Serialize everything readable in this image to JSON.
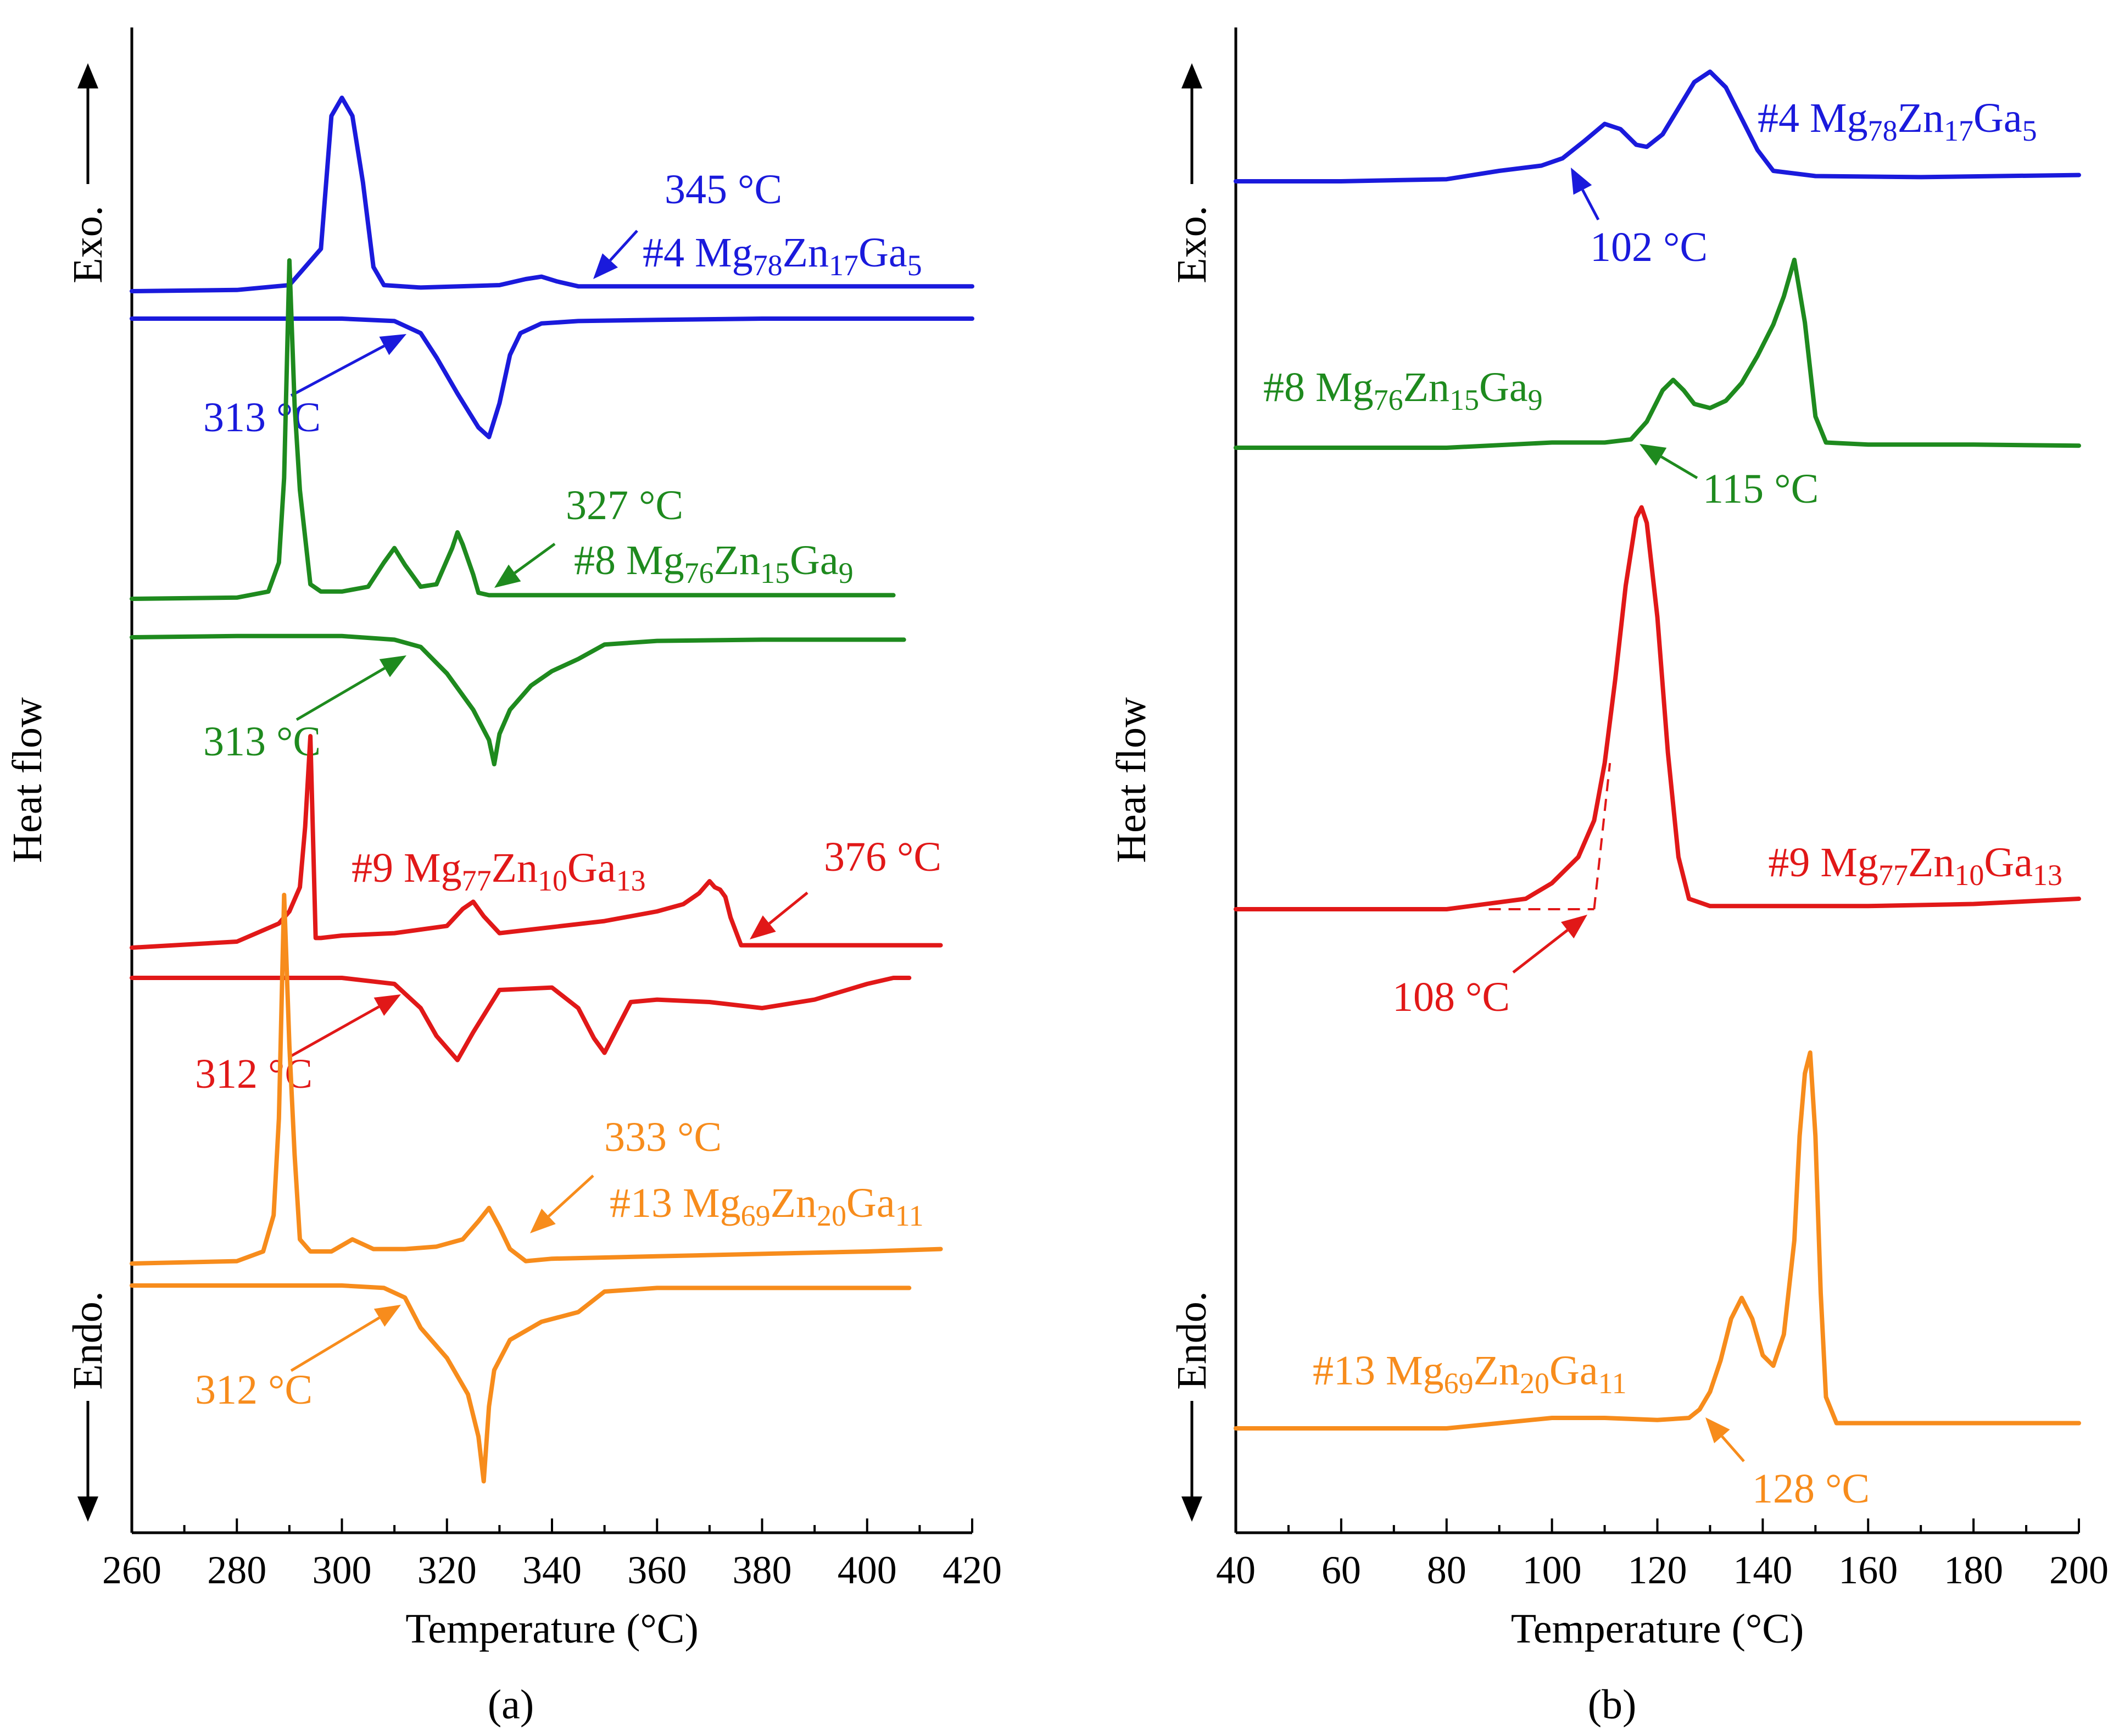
{
  "panel_labels": {
    "a": "(a)",
    "b": "(b)"
  },
  "chart_data": [
    {
      "type": "line",
      "xlabel": "Temperature (°C)",
      "ylabel": "Heat flow",
      "exo_label": "Exo.",
      "endo_label": "Endo.",
      "xlim": [
        260,
        420
      ],
      "xticks": [
        260,
        280,
        300,
        320,
        340,
        360,
        380,
        400,
        420
      ],
      "series": [
        {
          "label": "#4 Mg78Zn17Ga5",
          "color": "#1a1adc",
          "sample": "#4 Mg",
          "sub1": "78",
          "el2": "Zn",
          "sub2": "17",
          "el3": "Ga",
          "sub3": "5",
          "heating_onset": "345 °C",
          "cooling_onset": "313 °C",
          "heating_x": [
            260,
            280,
            290,
            296,
            298,
            300,
            302,
            304,
            306,
            308,
            315,
            330,
            335,
            338,
            341,
            345,
            360,
            380,
            400,
            420
          ],
          "heating_y": [
            0,
            0.01,
            0.05,
            0.35,
            1.45,
            1.6,
            1.45,
            0.9,
            0.2,
            0.05,
            0.03,
            0.05,
            0.1,
            0.12,
            0.08,
            0.04,
            0.04,
            0.04,
            0.04,
            0.04
          ],
          "cooling_x": [
            260,
            280,
            300,
            310,
            315,
            318,
            322,
            326,
            328,
            330,
            332,
            334,
            338,
            345,
            360,
            380,
            400,
            420
          ],
          "cooling_y": [
            0,
            0,
            0,
            -0.02,
            -0.12,
            -0.32,
            -0.62,
            -0.9,
            -0.98,
            -0.7,
            -0.3,
            -0.12,
            -0.04,
            -0.02,
            -0.01,
            0,
            0,
            0
          ]
        },
        {
          "label": "#8 Mg76Zn15Ga9",
          "color": "#1e8a1e",
          "sample": "#8 Mg",
          "sub1": "76",
          "el2": "Zn",
          "sub2": "15",
          "el3": "Ga",
          "sub3": "9",
          "heating_onset": "327 °C",
          "cooling_onset": "313 °C",
          "heating_x": [
            260,
            280,
            286,
            288,
            289,
            290,
            291,
            292,
            294,
            296,
            300,
            305,
            308,
            310,
            312,
            315,
            318,
            321,
            322,
            323,
            325,
            326,
            328,
            340,
            360,
            380,
            400,
            405
          ],
          "heating_y": [
            0,
            0.01,
            0.06,
            0.3,
            1.0,
            2.8,
            1.6,
            0.9,
            0.12,
            0.06,
            0.06,
            0.1,
            0.3,
            0.42,
            0.28,
            0.1,
            0.12,
            0.42,
            0.55,
            0.45,
            0.2,
            0.05,
            0.03,
            0.03,
            0.03,
            0.03,
            0.03,
            0.03
          ],
          "cooling_x": [
            260,
            280,
            300,
            310,
            315,
            320,
            325,
            328,
            329,
            330,
            332,
            336,
            340,
            345,
            350,
            360,
            380,
            400,
            407
          ],
          "cooling_y": [
            0,
            0.01,
            0.01,
            -0.02,
            -0.08,
            -0.3,
            -0.6,
            -0.85,
            -1.05,
            -0.8,
            -0.6,
            -0.4,
            -0.28,
            -0.18,
            -0.06,
            -0.03,
            -0.02,
            -0.02,
            -0.02
          ]
        },
        {
          "label": "#9 Mg77Zn10Ga13",
          "color": "#e11818",
          "sample": "#9 Mg",
          "sub1": "77",
          "el2": "Zn",
          "sub2": "10",
          "el3": "Ga",
          "sub3": "13",
          "heating_onset": "376 °C",
          "cooling_onset": "312 °C",
          "heating_x": [
            260,
            280,
            288,
            290,
            292,
            293,
            294,
            295,
            296,
            300,
            310,
            320,
            323,
            325,
            327,
            330,
            340,
            350,
            360,
            365,
            368,
            370,
            371,
            372,
            373,
            374,
            376,
            380,
            400,
            414
          ],
          "heating_y": [
            0,
            0.05,
            0.2,
            0.3,
            0.5,
            1.0,
            1.75,
            0.08,
            0.08,
            0.1,
            0.12,
            0.18,
            0.32,
            0.38,
            0.26,
            0.12,
            0.17,
            0.22,
            0.3,
            0.36,
            0.45,
            0.55,
            0.5,
            0.48,
            0.42,
            0.25,
            0.02,
            0.02,
            0.02,
            0.02
          ],
          "cooling_x": [
            260,
            280,
            300,
            310,
            315,
            318,
            322,
            325,
            330,
            340,
            345,
            348,
            350,
            352,
            355,
            360,
            370,
            380,
            390,
            400,
            405,
            408
          ],
          "cooling_y": [
            0,
            0,
            0,
            -0.05,
            -0.25,
            -0.48,
            -0.68,
            -0.45,
            -0.1,
            -0.08,
            -0.25,
            -0.5,
            -0.62,
            -0.45,
            -0.2,
            -0.18,
            -0.2,
            -0.25,
            -0.18,
            -0.05,
            0,
            0
          ]
        },
        {
          "label": "#13 Mg69Zn20Ga11",
          "color": "#f78c1c",
          "sample": "#13 Mg",
          "sub1": "69",
          "el2": "Zn",
          "sub2": "20",
          "el3": "Ga",
          "sub3": "11",
          "heating_onset": "333 °C",
          "cooling_onset": "312 °C",
          "heating_x": [
            260,
            280,
            285,
            287,
            288,
            289,
            290,
            291,
            292,
            294,
            298,
            302,
            306,
            312,
            318,
            323,
            326,
            328,
            330,
            332,
            335,
            340,
            360,
            380,
            400,
            414
          ],
          "heating_y": [
            0,
            0.02,
            0.1,
            0.4,
            1.2,
            3.05,
            1.8,
            0.9,
            0.2,
            0.1,
            0.1,
            0.2,
            0.12,
            0.12,
            0.14,
            0.2,
            0.35,
            0.46,
            0.3,
            0.12,
            0.02,
            0.04,
            0.06,
            0.08,
            0.1,
            0.12
          ],
          "cooling_x": [
            260,
            280,
            300,
            308,
            312,
            315,
            320,
            324,
            326,
            327,
            328,
            329,
            332,
            338,
            345,
            350,
            360,
            380,
            400,
            408
          ],
          "cooling_y": [
            0,
            0,
            0,
            -0.02,
            -0.1,
            -0.35,
            -0.6,
            -0.9,
            -1.25,
            -1.62,
            -1.0,
            -0.7,
            -0.45,
            -0.3,
            -0.22,
            -0.05,
            -0.02,
            -0.02,
            -0.02,
            -0.02
          ]
        }
      ]
    },
    {
      "type": "line",
      "xlabel": "Temperature (°C)",
      "ylabel": "Heat flow",
      "exo_label": "Exo.",
      "endo_label": "Endo.",
      "xlim": [
        40,
        200
      ],
      "xticks": [
        40,
        60,
        80,
        100,
        120,
        140,
        160,
        180,
        200
      ],
      "series": [
        {
          "label": "#4 Mg78Zn17Ga5",
          "color": "#1a1adc",
          "sample": "#4 Mg",
          "sub1": "78",
          "el2": "Zn",
          "sub2": "17",
          "el3": "Ga",
          "sub3": "5",
          "onset": "102 °C",
          "x": [
            40,
            60,
            80,
            90,
            98,
            102,
            106,
            110,
            113,
            116,
            118,
            121,
            124,
            127,
            130,
            133,
            136,
            139,
            142,
            150,
            170,
            200
          ],
          "y": [
            0,
            0,
            0.02,
            0.1,
            0.15,
            0.22,
            0.38,
            0.55,
            0.5,
            0.35,
            0.33,
            0.45,
            0.7,
            0.95,
            1.05,
            0.9,
            0.6,
            0.3,
            0.1,
            0.05,
            0.04,
            0.06
          ]
        },
        {
          "label": "#8 Mg76Zn15Ga9",
          "color": "#1e8a1e",
          "sample": "#8 Mg",
          "sub1": "76",
          "el2": "Zn",
          "sub2": "15",
          "el3": "Ga",
          "sub3": "9",
          "onset": "115 °C",
          "x": [
            40,
            60,
            80,
            100,
            110,
            115,
            118,
            121,
            123,
            125,
            127,
            130,
            133,
            136,
            139,
            142,
            144,
            146,
            148,
            150,
            152,
            160,
            180,
            200
          ],
          "y": [
            0,
            0,
            0,
            0.05,
            0.05,
            0.08,
            0.25,
            0.55,
            0.65,
            0.55,
            0.42,
            0.38,
            0.45,
            0.62,
            0.88,
            1.18,
            1.45,
            1.8,
            1.2,
            0.3,
            0.05,
            0.03,
            0.03,
            0.02
          ]
        },
        {
          "label": "#9 Mg77Zn10Ga13",
          "color": "#e11818",
          "sample": "#9 Mg",
          "sub1": "77",
          "el2": "Zn",
          "sub2": "10",
          "el3": "Ga",
          "sub3": "13",
          "onset": "108 °C",
          "x": [
            40,
            60,
            80,
            95,
            100,
            105,
            108,
            110,
            112,
            114,
            116,
            117,
            118,
            120,
            122,
            124,
            126,
            130,
            140,
            160,
            180,
            200
          ],
          "y": [
            0,
            0,
            0,
            0.1,
            0.25,
            0.5,
            0.85,
            1.4,
            2.2,
            3.1,
            3.75,
            3.85,
            3.7,
            2.8,
            1.5,
            0.5,
            0.1,
            0.03,
            0.03,
            0.03,
            0.05,
            0.1
          ],
          "tangent": {
            "baseline_x": [
              88,
              108
            ],
            "tangent_x": [
              108,
              111
            ],
            "tangent_y": [
              0.0,
              1.4
            ]
          }
        },
        {
          "label": "#13 Mg69Zn20Ga11",
          "color": "#f78c1c",
          "sample": "#13 Mg",
          "sub1": "69",
          "el2": "Zn",
          "sub2": "20",
          "el3": "Ga",
          "sub3": "11",
          "onset": "128 °C",
          "x": [
            40,
            60,
            80,
            90,
            100,
            110,
            120,
            126,
            128,
            130,
            132,
            134,
            136,
            138,
            140,
            142,
            144,
            146,
            147,
            148,
            149,
            150,
            151,
            152,
            154,
            160,
            180,
            200
          ],
          "y": [
            0,
            0,
            0,
            0.05,
            0.1,
            0.1,
            0.08,
            0.1,
            0.18,
            0.35,
            0.65,
            1.05,
            1.25,
            1.05,
            0.7,
            0.6,
            0.9,
            1.8,
            2.8,
            3.4,
            3.6,
            2.8,
            1.3,
            0.3,
            0.05,
            0.05,
            0.05,
            0.05
          ]
        }
      ]
    }
  ]
}
